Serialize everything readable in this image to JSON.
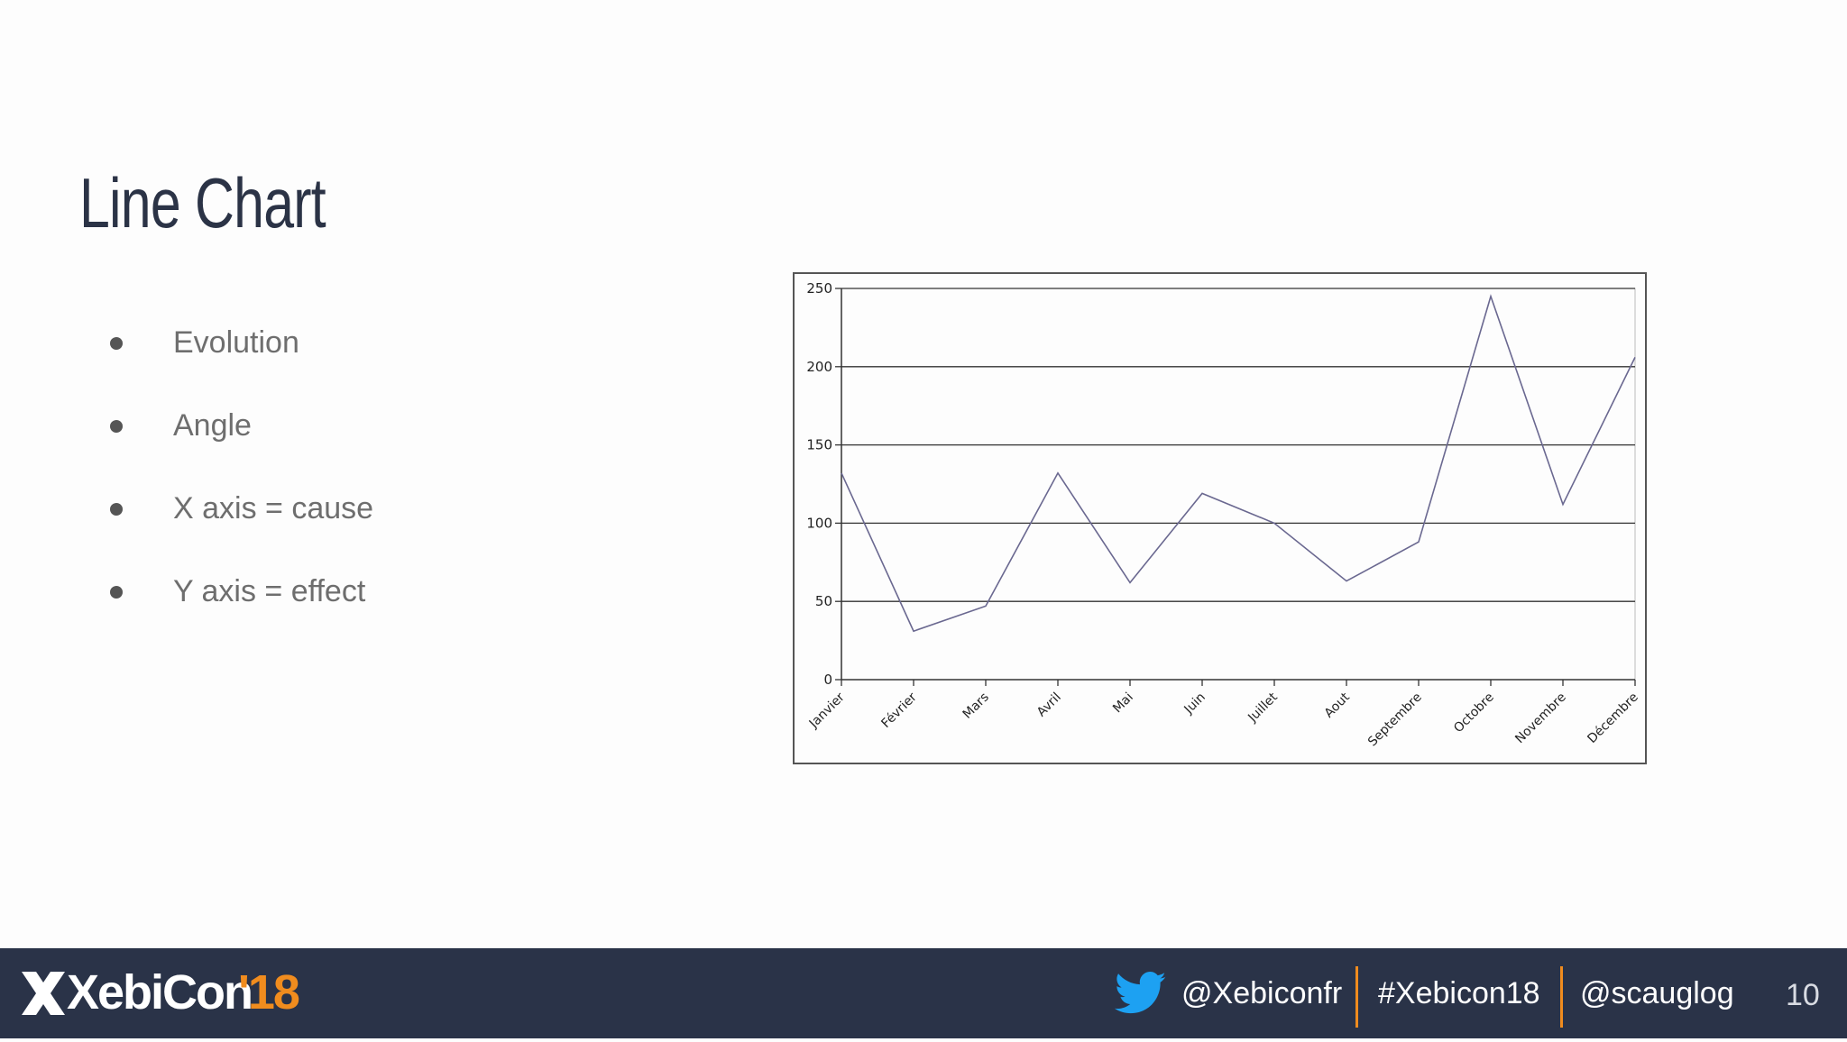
{
  "slide": {
    "title": "Line Chart",
    "bullets": [
      {
        "text": "Evolution"
      },
      {
        "text": "Angle"
      },
      {
        "text": "X axis = cause"
      },
      {
        "text": "Y axis = effect"
      }
    ]
  },
  "chart_data": {
    "type": "line",
    "title": "",
    "xlabel": "",
    "ylabel": "",
    "categories": [
      "Janvier",
      "Février",
      "Mars",
      "Avril",
      "Mai",
      "Juin",
      "Juillet",
      "Aout",
      "Septembre",
      "Octobre",
      "Novembre",
      "Décembre"
    ],
    "series": [
      {
        "values": [
          132,
          31,
          47,
          132,
          62,
          119,
          100,
          63,
          88,
          245,
          112,
          206
        ],
        "color": "#6a6890"
      }
    ],
    "ylim": [
      0,
      250
    ],
    "yticks": [
      0,
      50,
      100,
      150,
      200,
      250
    ],
    "grid": true,
    "tick_label_rotation": -45
  },
  "footer": {
    "brand": "XebiCon",
    "year": "'18",
    "twitter_handle": "@Xebiconfr",
    "hashtag": "#Xebicon18",
    "speaker_handle": "@scauglog",
    "page_number": "10",
    "colors": {
      "background": "#2a3348",
      "accent": "#f08c1e",
      "twitter": "#1da1f2"
    }
  }
}
